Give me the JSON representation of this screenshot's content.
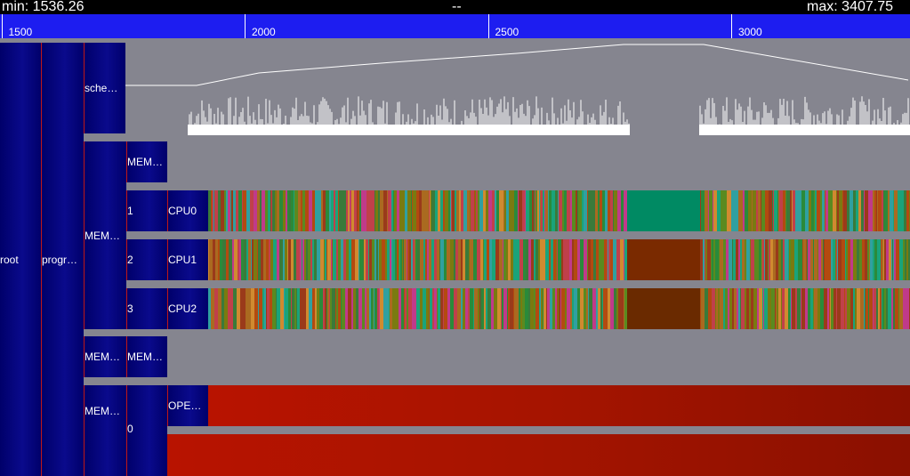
{
  "header": {
    "min_label": "min: 1536.26",
    "center_label": "--",
    "max_label": "max: 3407.75"
  },
  "axis": {
    "min": 1536.26,
    "max": 3407.75,
    "ticks": [
      {
        "value": 1500,
        "label": "1500"
      },
      {
        "value": 2000,
        "label": "2000"
      },
      {
        "value": 2500,
        "label": "2500"
      },
      {
        "value": 3000,
        "label": "3000"
      }
    ]
  },
  "tree": {
    "root": "root",
    "program": "progr…",
    "scheduler": "sche…",
    "mem_group_1": "MEM…",
    "mem_sub_1": "MEM…",
    "cpu_rows": [
      {
        "index": "1",
        "name": "CPU0"
      },
      {
        "index": "2",
        "name": "CPU1"
      },
      {
        "index": "3",
        "name": "CPU2"
      }
    ],
    "mem_group_2": "MEM…",
    "mem_sub_2": "MEM…",
    "mem_index": "0",
    "ope_label": "OPE…"
  },
  "colors": {
    "background": "#85858f",
    "axis": "#1d1df0",
    "block": "#0a0a8c",
    "red_task": "#a51400",
    "cpu0_idle": "#008a63",
    "cpu_idle_brown": "#7a2a00"
  }
}
